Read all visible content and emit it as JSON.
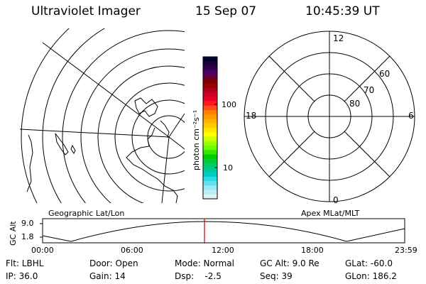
{
  "header": {
    "title": "Ultraviolet Imager",
    "date": "15 Sep 07",
    "time": "10:45:39 UT"
  },
  "colorbar": {
    "unit": "photon cm⁻²s⁻¹",
    "ticks": [
      "100",
      "10"
    ],
    "colors": [
      "#000033",
      "#1a0033",
      "#33004d",
      "#4d0066",
      "#660033",
      "#800000",
      "#990000",
      "#b3001a",
      "#cc0022",
      "#e6002b",
      "#ff1a1a",
      "#ff4d1a",
      "#ff8000",
      "#ff9900",
      "#ffb300",
      "#ffcc00",
      "#ffe600",
      "#ffff00",
      "#ccff00",
      "#99ff00",
      "#66ff00",
      "#33e600",
      "#00cc00",
      "#00cc33",
      "#00cc66",
      "#00cc99",
      "#00cccc",
      "#33d6e6",
      "#66e0f0",
      "#99eaf5",
      "#bfeef2",
      "#ddf3f0"
    ]
  },
  "left_map": {
    "caption": "Geographic Lat/Lon"
  },
  "right_map": {
    "caption": "Apex MLat/MLT",
    "mlt_labels": [
      "12",
      "18",
      "6",
      "0"
    ],
    "lat_labels": [
      "60",
      "70",
      "80"
    ]
  },
  "altitude_plot": {
    "ylabel": "GC Alt",
    "y_ticks": [
      "9.0",
      "1.8"
    ],
    "x_ticks": [
      "00:00",
      "06:00",
      "12:00",
      "18:00",
      "23:59"
    ],
    "marker_color": "#cc0000"
  },
  "footer": {
    "row1": {
      "flt": "Flt: LBHL",
      "door": "Door: Open",
      "mode": "Mode: Normal",
      "gcalt": "GC Alt: 9.0 Re",
      "glat": "GLat: -60.0"
    },
    "row2": {
      "ip": "IP: 36.0",
      "gain": "Gain: 14",
      "dsp": "Dsp:    -2.5",
      "seq": "Seq: 39",
      "glon": "GLon: 186.2"
    }
  }
}
